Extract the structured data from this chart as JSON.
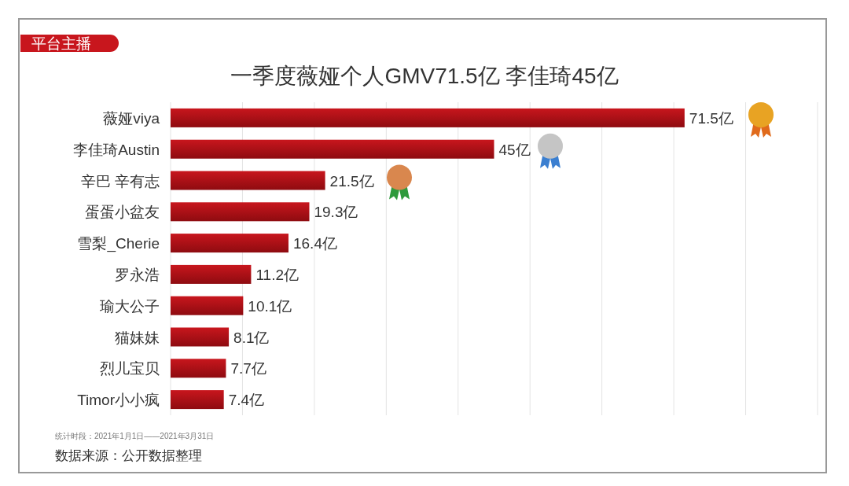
{
  "chart_data": {
    "type": "bar",
    "orientation": "horizontal",
    "title": "一季度薇娅个人GMV71.5亿 李佳琦45亿",
    "categories": [
      "薇娅viya",
      "李佳琦Austin",
      "辛巴 辛有志",
      "蛋蛋小盆友",
      "雪梨_Cherie",
      "罗永浩",
      "瑜大公子",
      "猫妹妹",
      "烈儿宝贝",
      "Timor小小疯"
    ],
    "values": [
      71.5,
      45,
      21.5,
      19.3,
      16.4,
      11.2,
      10.1,
      8.1,
      7.7,
      7.4
    ],
    "value_labels": [
      "71.5亿",
      "45亿",
      "21.5亿",
      "19.3亿",
      "16.4亿",
      "11.2亿",
      "10.1亿",
      "8.1亿",
      "7.7亿",
      "7.4亿"
    ],
    "color": "#c8161d",
    "xlim": [
      0,
      90
    ],
    "xticks": [
      {
        "value": 0,
        "label": null
      },
      {
        "value": 10,
        "label": null
      },
      {
        "value": 20,
        "label": null
      },
      {
        "value": 30,
        "label": null
      },
      {
        "value": 40,
        "label": null
      },
      {
        "value": 50,
        "label": null
      },
      {
        "value": 60,
        "label": null
      },
      {
        "value": 70,
        "label": null
      },
      {
        "value": 80,
        "label": null
      },
      {
        "value": 90,
        "label": null
      }
    ],
    "grid": "x",
    "annotations": [
      "平台主播",
      "统计时段：2021年1月1日——2021年3月31日",
      "数据来源：公开数据整理"
    ]
  }
}
